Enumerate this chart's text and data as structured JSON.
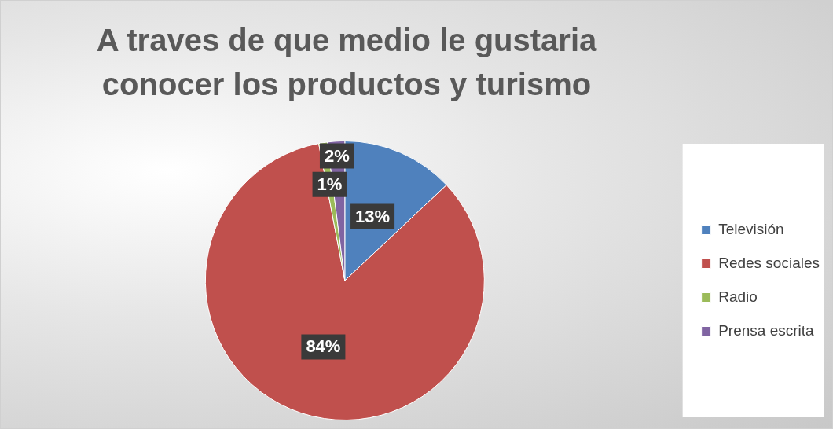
{
  "chart_data": {
    "type": "pie",
    "title": "A traves de que medio le gustaria conocer los productos y turismo",
    "categories": [
      "Televisión",
      "Redes sociales",
      "Radio",
      "Prensa escrita"
    ],
    "values": [
      13,
      84,
      1,
      2
    ],
    "value_labels": [
      "13%",
      "84%",
      "1%",
      "2%"
    ],
    "colors": [
      "#4f81bd",
      "#c0504d",
      "#9bbb59",
      "#8064a2"
    ],
    "legend": "right"
  }
}
